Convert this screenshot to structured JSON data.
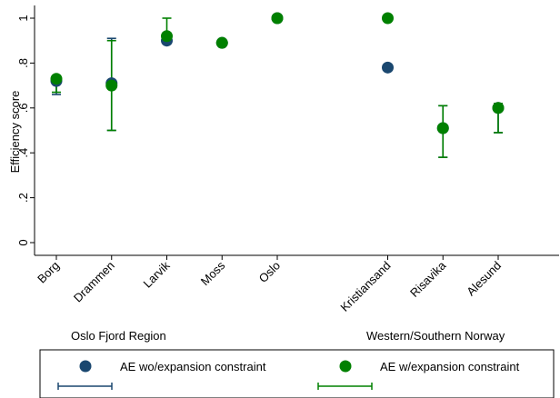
{
  "chart_data": {
    "type": "scatter",
    "ylabel": "Efficiency score",
    "ylim": [
      0,
      1
    ],
    "yticks": [
      {
        "value": 0,
        "label": "0"
      },
      {
        "value": 0.2,
        "label": ".2"
      },
      {
        "value": 0.4,
        "label": ".4"
      },
      {
        "value": 0.6,
        "label": ".6"
      },
      {
        "value": 0.8,
        "label": ".8"
      },
      {
        "value": 1,
        "label": "1"
      }
    ],
    "categories": [
      "Borg",
      "Drammen",
      "Larvik",
      "Moss",
      "Oslo",
      "Kristiansand",
      "Risavika",
      "Alesund"
    ],
    "category_positions": [
      1,
      2,
      3,
      4,
      5,
      7,
      8,
      9
    ],
    "regions": [
      "Oslo Fjord Region",
      "Western/Southern Norway"
    ],
    "grid": false,
    "legend_position": "bottom",
    "series": [
      {
        "name": "AE wo/expansion constraint",
        "color": "#1a476f",
        "values": [
          0.72,
          0.71,
          0.9,
          0.89,
          1.0,
          0.78,
          0.51,
          0.6
        ],
        "ci_low": [
          0.66,
          0.5,
          null,
          null,
          null,
          null,
          0.38,
          0.49
        ],
        "ci_high": [
          0.73,
          0.91,
          null,
          null,
          null,
          null,
          0.61,
          0.62
        ]
      },
      {
        "name": "AE w/expansion constraint",
        "color": "#008000",
        "values": [
          0.73,
          0.7,
          0.92,
          0.89,
          1.0,
          1.0,
          0.51,
          0.6
        ],
        "ci_low": [
          0.67,
          0.5,
          0.9,
          null,
          null,
          null,
          0.38,
          0.49
        ],
        "ci_high": [
          0.73,
          0.9,
          1.0,
          null,
          null,
          null,
          0.61,
          0.62
        ]
      }
    ]
  }
}
